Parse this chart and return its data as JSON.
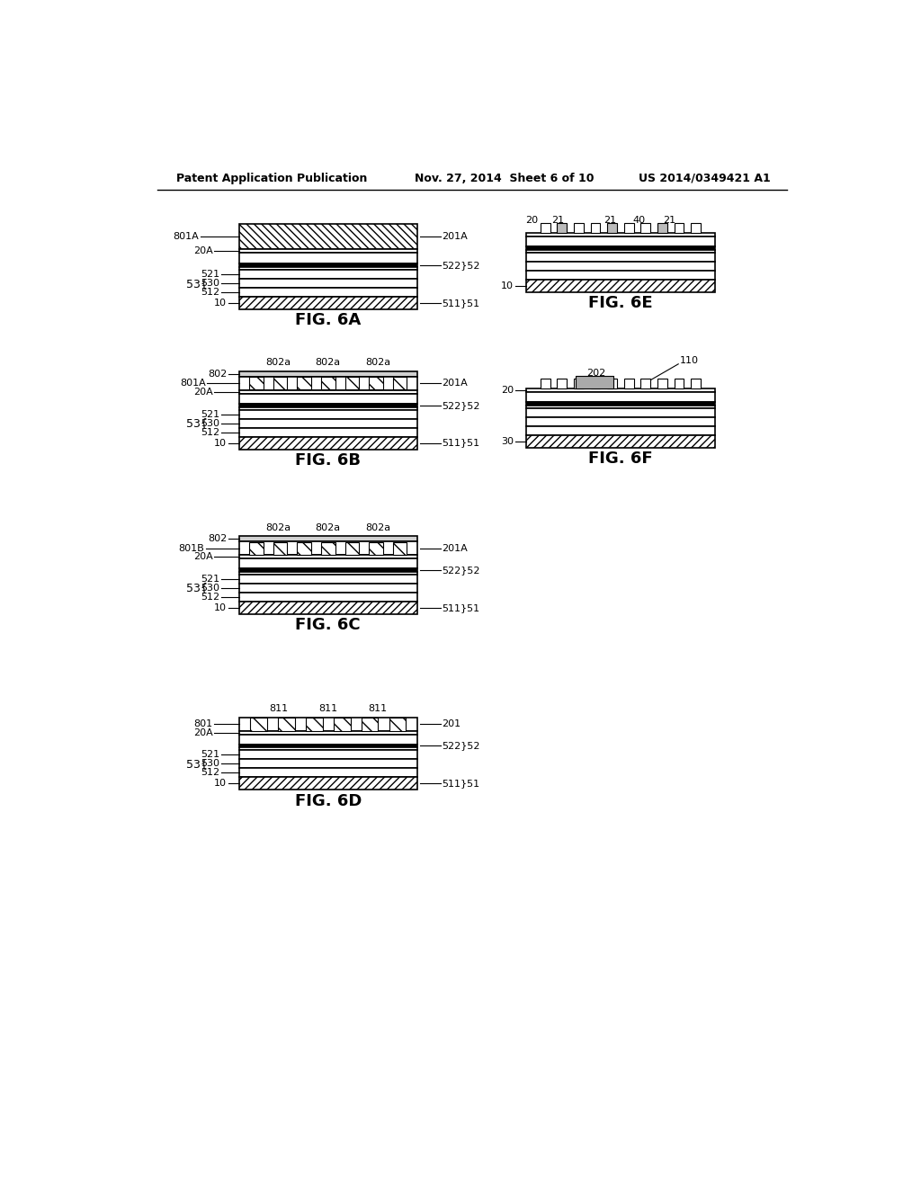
{
  "header_left": "Patent Application Publication",
  "header_mid": "Nov. 27, 2014  Sheet 6 of 10",
  "header_right": "US 2014/0349421 A1",
  "bg_color": "#ffffff",
  "line_color": "#000000",
  "fig_label_size": 13
}
